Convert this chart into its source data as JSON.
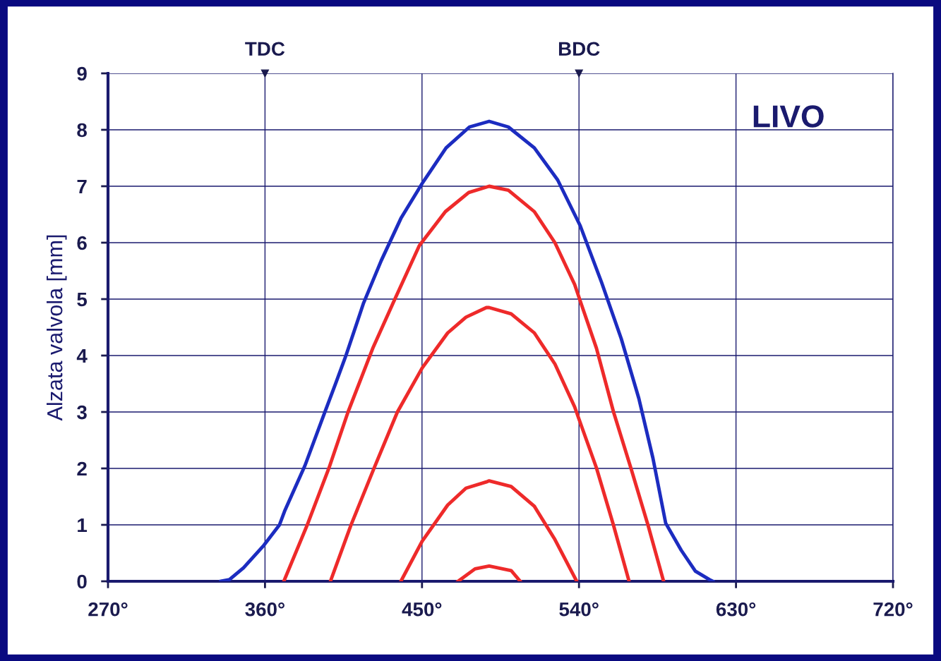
{
  "chart_data": {
    "type": "line",
    "ylabel": "Alzata valvola [mm]",
    "annotations": [
      {
        "text": "TDC",
        "x": 360,
        "y": 9
      },
      {
        "text": "BDC",
        "x": 540,
        "y": 9
      },
      "LIVO"
    ],
    "xlim": [
      270,
      720
    ],
    "ylim": [
      0,
      9
    ],
    "xticks": [
      {
        "value": 270,
        "label": "270°"
      },
      {
        "value": 360,
        "label": "360°"
      },
      {
        "value": 450,
        "label": "450°"
      },
      {
        "value": 540,
        "label": "540°"
      },
      {
        "value": 630,
        "label": "630°"
      },
      {
        "value": 720,
        "label": "720°"
      }
    ],
    "yticks": [
      0,
      1,
      2,
      3,
      4,
      5,
      6,
      7,
      8,
      9
    ],
    "grid": true,
    "line_style": "solid",
    "marker": "none",
    "series": [
      {
        "color": "#1c2cc0",
        "x": [
          334.7,
          339.6,
          347.7,
          359.4,
          368.3,
          371.2,
          382.9,
          394.2,
          400.3,
          406.4,
          416.5,
          426.6,
          437.9,
          450.1,
          463.8,
          477.2,
          488.5,
          499.5,
          514.4,
          527.8,
          540.7,
          552.9,
          564.2,
          574.3,
          582.4,
          589.7,
          598.6,
          606.7,
          614.8,
          616.8
        ],
        "values": [
          0,
          0.03,
          0.24,
          0.64,
          1.0,
          1.24,
          2.05,
          2.99,
          3.49,
          4.0,
          4.93,
          5.68,
          6.43,
          7.05,
          7.68,
          8.05,
          8.15,
          8.05,
          7.68,
          7.11,
          6.3,
          5.3,
          4.3,
          3.24,
          2.18,
          1.03,
          0.55,
          0.18,
          0.03,
          0
        ]
      },
      {
        "color": "#ee2a2a",
        "x": [
          370.8,
          384.1,
          396.7,
          407.6,
          421.8,
          434.3,
          448.5,
          463.4,
          476.8,
          488.5,
          499.5,
          514.4,
          526.2,
          537.5,
          542,
          550,
          559.8,
          569.9,
          579.6,
          588.5
        ],
        "values": [
          0,
          0.99,
          2.01,
          3.0,
          4.13,
          4.99,
          5.95,
          6.55,
          6.89,
          7.0,
          6.93,
          6.55,
          6.0,
          5.26,
          4.85,
          4.13,
          3.0,
          1.99,
          0.99,
          0
        ]
      },
      {
        "color": "#ee2a2a",
        "x": [
          397.5,
          409.2,
          422.6,
          435.9,
          450.1,
          464.7,
          475.2,
          486.9,
          488.5,
          501.1,
          514.4,
          526.2,
          537.5,
          542,
          550,
          559.8,
          568.7
        ],
        "values": [
          0,
          0.99,
          2.01,
          3.0,
          3.78,
          4.4,
          4.68,
          4.85,
          4.85,
          4.74,
          4.4,
          3.85,
          3.09,
          2.7,
          2.01,
          0.99,
          0
        ]
      },
      {
        "color": "#ee2a2a",
        "x": [
          437.9,
          450.1,
          464.7,
          475.2,
          486.9,
          488.5,
          501.1,
          514.4,
          526.2,
          538.7
        ],
        "values": [
          0,
          0.71,
          1.35,
          1.65,
          1.76,
          1.78,
          1.68,
          1.33,
          0.74,
          0
        ]
      },
      {
        "color": "#ee2a2a",
        "x": [
          470.7,
          480.4,
          488.5,
          501.1,
          506.3
        ],
        "values": [
          0,
          0.22,
          0.27,
          0.19,
          0
        ]
      }
    ]
  }
}
